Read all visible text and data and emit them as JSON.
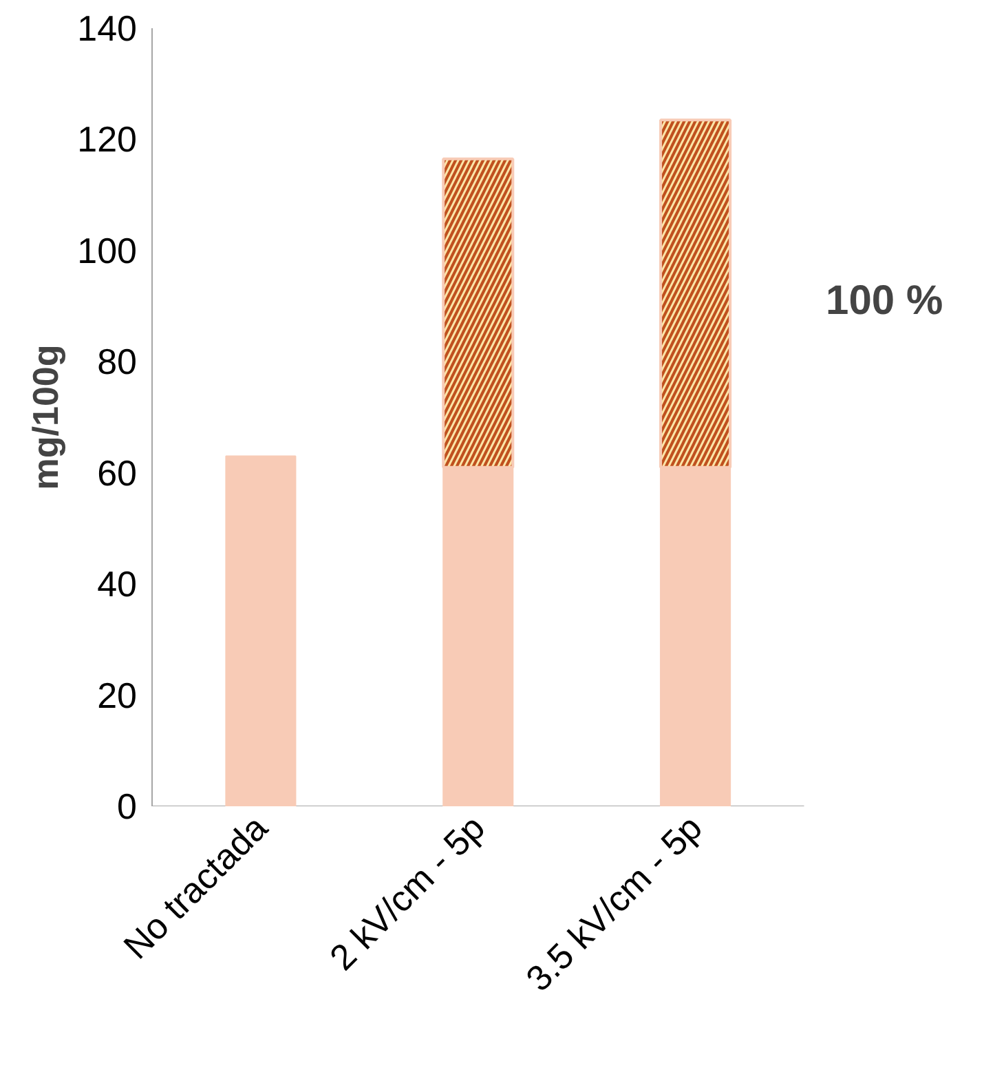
{
  "chart_data": {
    "type": "bar",
    "stacked": true,
    "ylabel": "mg/100g",
    "categories": [
      "No tractada",
      "2 kV/cm - 5p",
      "3.5 kV/cm - 5p"
    ],
    "series": [
      {
        "color": "#f8cbb6",
        "values": [
          63,
          61,
          61
        ]
      },
      {
        "color": "#c0501e",
        "values": [
          null,
          55.5,
          62.5
        ]
      }
    ],
    "ylim": [
      0,
      140
    ],
    "yticks": [
      0,
      20,
      40,
      60,
      80,
      100,
      120,
      140
    ],
    "grid": false,
    "annotations": [
      "100 %"
    ]
  }
}
